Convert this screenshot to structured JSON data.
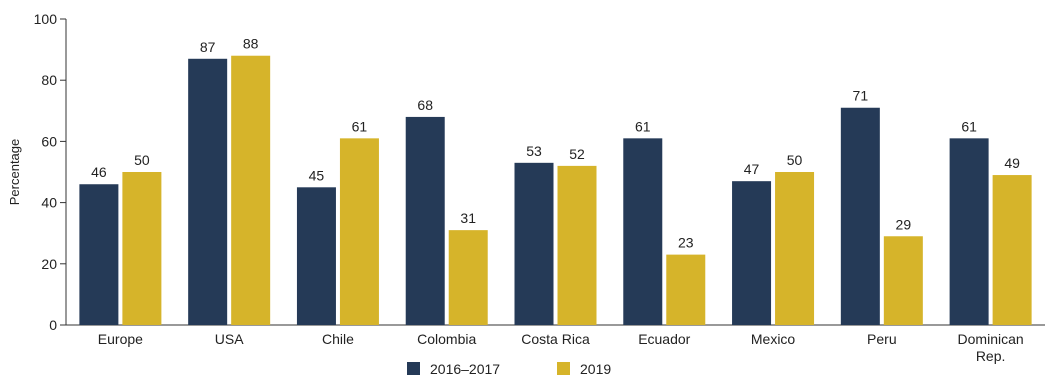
{
  "chart_data": {
    "type": "bar",
    "title": "",
    "xlabel": "",
    "ylabel": "Percentage",
    "ylim": [
      0,
      100
    ],
    "yticks": [
      0,
      20,
      40,
      60,
      80,
      100
    ],
    "grid": false,
    "legend_position": "bottom-center",
    "categories": [
      [
        "Europe"
      ],
      [
        "USA"
      ],
      [
        "Chile"
      ],
      [
        "Colombia"
      ],
      [
        "Costa Rica"
      ],
      [
        "Ecuador"
      ],
      [
        "Mexico"
      ],
      [
        "Peru"
      ],
      [
        "Dominican",
        "Rep."
      ]
    ],
    "series": [
      {
        "name": "2016–2017",
        "color": "#253a57",
        "values": [
          46,
          87,
          45,
          68,
          53,
          61,
          47,
          71,
          61
        ]
      },
      {
        "name": "2019",
        "color": "#d6b42a",
        "values": [
          50,
          88,
          61,
          31,
          52,
          23,
          50,
          29,
          49
        ]
      }
    ]
  }
}
